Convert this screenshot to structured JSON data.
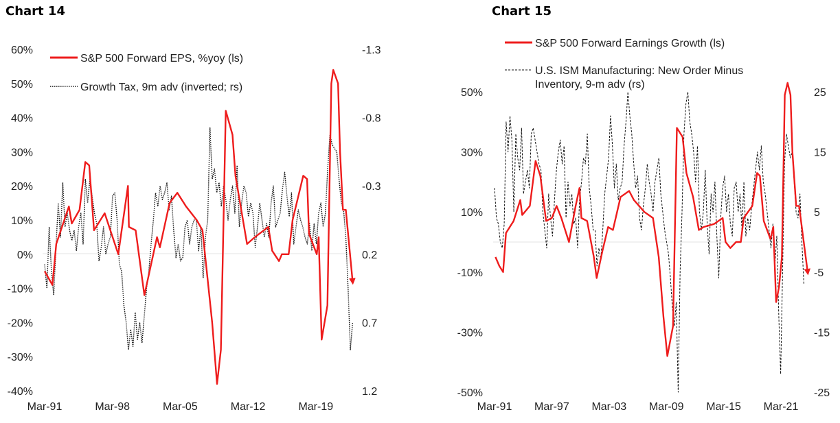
{
  "chart_data": [
    {
      "type": "line",
      "title": "Chart 14",
      "x_ticks": [
        "Mar-91",
        "Mar-98",
        "Mar-05",
        "Mar-12",
        "Mar-19"
      ],
      "x_tick_years": [
        1991.2,
        1998.2,
        2005.2,
        2012.2,
        2019.2
      ],
      "xlim": [
        1991.0,
        2023.3
      ],
      "y_left": {
        "ticks": [
          "60%",
          "50%",
          "40%",
          "30%",
          "20%",
          "10%",
          "0%",
          "-10%",
          "-20%",
          "-30%",
          "-40%"
        ],
        "ylim": [
          -40,
          60
        ]
      },
      "y_right": {
        "ticks": [
          "-1.3",
          "-0.8",
          "-0.3",
          "0.2",
          "0.7",
          "1.2"
        ],
        "ylim": [
          1.2,
          -1.3
        ],
        "inverted": true
      },
      "legend": {
        "placement": "top-left",
        "entries": [
          "S&P 500 Forward EPS, %yoy (ls)",
          "Growth Tax, 9m adv (inverted; rs)"
        ]
      },
      "series": [
        {
          "name": "S&P 500 Forward EPS, %yoy (ls)",
          "axis": "left",
          "color": "#ee1c1c",
          "style": "solid",
          "arrow": true,
          "x": [
            1991.2,
            1992.0,
            1992.4,
            1993.7,
            1994.0,
            1994.8,
            1995.4,
            1995.8,
            1996.3,
            1997.4,
            1998.8,
            1999.8,
            1999.9,
            2000.6,
            2001.5,
            2002.8,
            2003.1,
            2004.1,
            2004.9,
            2005.8,
            2006.9,
            2007.5,
            2008.5,
            2009.0,
            2009.4,
            2009.9,
            2010.6,
            2010.9,
            2012.1,
            2012.9,
            2014.3,
            2014.7,
            2015.4,
            2015.7,
            2016.4,
            2016.8,
            2017.9,
            2018.3,
            2018.5,
            2019.3,
            2019.5,
            2019.8,
            2020.4,
            2020.8,
            2021.0,
            2021.5,
            2021.7,
            2022.0,
            2022.3,
            2023.0
          ],
          "y": [
            -5,
            -9,
            3,
            14,
            9,
            13,
            27,
            26,
            7,
            12,
            0,
            20,
            8,
            7,
            -12,
            5,
            2,
            15,
            18,
            14,
            10,
            7,
            -20,
            -38,
            -28,
            42,
            35,
            23,
            3,
            5,
            8,
            1,
            -2,
            0,
            0,
            10,
            23,
            22,
            6,
            0,
            5,
            -25,
            -15,
            50,
            54,
            50,
            30,
            13,
            13,
            -8
          ]
        },
        {
          "name": "Growth Tax, 9m adv (inverted; rs)",
          "axis": "right",
          "color": "#111111",
          "style": "dotted",
          "x_start": 1991.2,
          "x_end": 2023.0,
          "y": [
            0.275,
            0.45,
            0,
            0.325,
            0.5,
            0.15,
            -0.175,
            0.075,
            -0.325,
            0,
            -0.1,
            0.025,
            0.1,
            0.025,
            0.175,
            0,
            -0.1,
            0.125,
            -0.35,
            -0.175,
            -0.35,
            -0.225,
            -0.1,
            -0.025,
            0.25,
            0.15,
            0,
            0.2,
            0.125,
            0.075,
            -0.225,
            -0.25,
            -0.05,
            0.275,
            0.325,
            0.575,
            0.7,
            0.9,
            0.75,
            0.875,
            0.625,
            0.825,
            0.7,
            0.85,
            0.65,
            0.45,
            0.325,
            0.125,
            -0.05,
            -0.25,
            -0.15,
            -0.3,
            -0.2,
            -0.25,
            -0.325,
            -0.125,
            -0.225,
            0.025,
            0.225,
            0.125,
            0.25,
            0.225,
            0,
            -0.05,
            0.125,
            0,
            -0.05,
            -0.05,
            0.175,
            0,
            0.375,
            0.075,
            -0.05,
            -0.725,
            -0.35,
            -0.425,
            -0.25,
            -0.325,
            -0.15,
            -0.3,
            -0.2,
            -0.05,
            -0.2,
            -0.3,
            -0.1,
            -0.45,
            0,
            -0.175,
            -0.3,
            -0.25,
            -0.075,
            -0.175,
            -0.1,
            0.15,
            0,
            -0.175,
            -0.05,
            0.075,
            -0.025,
            0.075,
            -0.175,
            -0.3,
            0,
            -0.05,
            -0.1,
            -0.275,
            -0.4,
            -0.225,
            -0.075,
            -0.25,
            0.125,
            0,
            -0.125,
            -0.05,
            0,
            0.075,
            0.125,
            -0.025,
            0.175,
            -0.025,
            0.125,
            -0.1,
            -0.175,
            0,
            -0.1,
            -0.425,
            -0.675,
            -0.6,
            -0.575,
            -0.55,
            -0.35,
            -0.175,
            -0.125,
            0.075,
            0.45,
            0.9,
            0.7
          ]
        }
      ]
    },
    {
      "type": "line",
      "title": "Chart 15",
      "x_ticks": [
        "Mar-91",
        "Mar-97",
        "Mar-03",
        "Mar-09",
        "Mar-15",
        "Mar-21"
      ],
      "x_tick_years": [
        1991.2,
        1997.2,
        2003.2,
        2009.2,
        2015.2,
        2021.2
      ],
      "xlim": [
        1991.2,
        2024.0
      ],
      "y_left": {
        "ticks": [
          "50%",
          "30%",
          "10%",
          "-10%",
          "-30%",
          "-50%"
        ],
        "ylim": [
          -50,
          50
        ]
      },
      "y_right": {
        "ticks": [
          "25",
          "15",
          "5",
          "-5",
          "-15",
          "-25"
        ],
        "ylim": [
          -25,
          25
        ]
      },
      "legend": {
        "placement": "top",
        "entries": [
          "S&P 500 Forward Earnings Growth (ls)",
          "U.S. ISM Manufacturing: New Order Minus",
          "Inventory, 9-m adv (rs)"
        ]
      },
      "series": [
        {
          "name": "S&P 500 Forward Earnings Growth (ls)",
          "axis": "left",
          "color": "#ee1c1c",
          "style": "solid",
          "arrow": true,
          "x": [
            1991.3,
            1991.7,
            1992.1,
            1992.4,
            1993.2,
            1993.9,
            1994.1,
            1994.9,
            1995.5,
            1996.0,
            1996.6,
            1997.2,
            1997.7,
            1998.2,
            1999.0,
            1999.7,
            2000.1,
            2000.3,
            2000.9,
            2001.6,
            2001.9,
            2002.5,
            2003.1,
            2003.6,
            2004.4,
            2005.3,
            2005.8,
            2006.9,
            2007.8,
            2008.4,
            2008.9,
            2009.3,
            2009.9,
            2010.3,
            2010.9,
            2011.3,
            2012.0,
            2012.6,
            2013.1,
            2014.2,
            2015.1,
            2015.4,
            2015.9,
            2016.5,
            2017.0,
            2017.3,
            2018.2,
            2018.7,
            2019.0,
            2019.4,
            2020.1,
            2020.4,
            2020.7,
            2021.0,
            2021.3,
            2021.6,
            2021.9,
            2022.2,
            2022.4,
            2022.8,
            2023.1,
            2024.0
          ],
          "y": [
            -5,
            -8,
            -10,
            3,
            7,
            14,
            9,
            12,
            27,
            22,
            7,
            8,
            12,
            8,
            0,
            12,
            18,
            8,
            7,
            -5,
            -12,
            -3,
            5,
            4,
            15,
            17,
            14,
            10,
            8,
            -5,
            -25,
            -38,
            -28,
            38,
            35,
            23,
            15,
            4,
            5,
            6,
            8,
            0,
            -2,
            0,
            0,
            8,
            12,
            23,
            22,
            7,
            1,
            5,
            -20,
            -15,
            -5,
            49,
            53,
            49,
            30,
            12,
            12,
            -10
          ]
        },
        {
          "name": "U.S. ISM Manufacturing: New Order Minus Inventory, 9-m adv (rs)",
          "axis": "right",
          "color": "#111111",
          "style": "dashed",
          "x_start": 1991.2,
          "x_end": 2023.6,
          "y": [
            9,
            4,
            3,
            0,
            -1,
            3,
            20,
            15,
            21,
            17,
            5,
            18,
            14,
            12,
            19,
            8,
            10,
            12,
            9,
            18,
            19,
            17,
            15,
            13,
            12,
            5,
            2,
            -1,
            8,
            4,
            1,
            7,
            12,
            15,
            17,
            13,
            16,
            4,
            10,
            6,
            8,
            3,
            4,
            -1,
            7,
            10,
            14,
            13,
            18,
            9,
            6,
            2,
            2,
            -4,
            -1,
            -3,
            2,
            8,
            11,
            14,
            21,
            16,
            9,
            13,
            7,
            9,
            10,
            16,
            20,
            25,
            21,
            18,
            13,
            9,
            11,
            4,
            2,
            6,
            9,
            13,
            10,
            8,
            5,
            10,
            12,
            14,
            8,
            5,
            2,
            0,
            -2,
            -6,
            -11,
            -14,
            -10,
            -25,
            -5,
            5,
            18,
            23,
            25,
            20,
            18,
            15,
            10,
            16,
            5,
            2,
            5,
            12,
            3,
            -2,
            8,
            5,
            10,
            1,
            -6,
            4,
            9,
            11,
            5,
            8,
            3,
            1,
            9,
            10,
            5,
            8,
            2,
            10,
            1,
            4,
            2,
            6,
            9,
            12,
            15,
            12,
            16,
            10,
            8,
            5,
            2,
            -1,
            3,
            -4,
            1,
            -12,
            -22,
            -5,
            13,
            18,
            16,
            14,
            15,
            10,
            5,
            4,
            8,
            0,
            -7
          ]
        }
      ]
    }
  ]
}
